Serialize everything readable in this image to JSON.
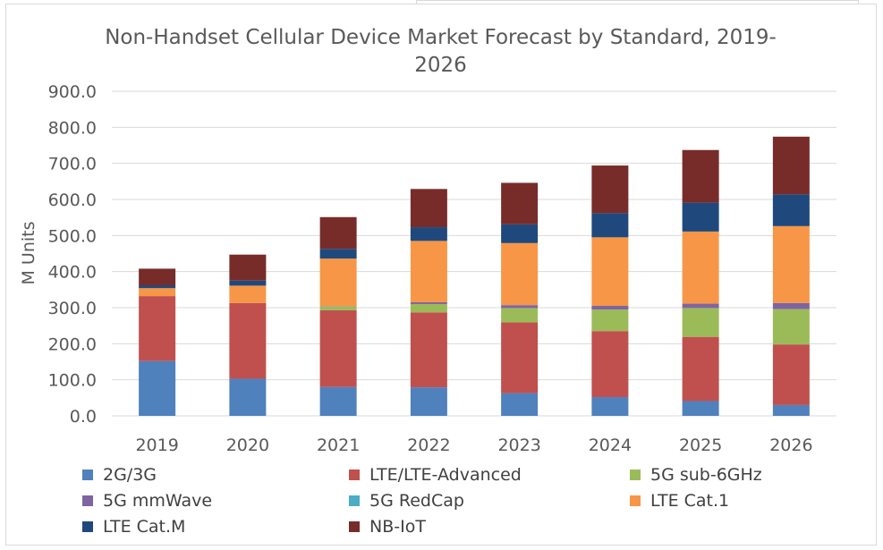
{
  "chart_data": {
    "type": "bar",
    "stacked": true,
    "title": "Non-Handset Cellular Device Market Forecast by Standard, 2019-2026",
    "title_lines": [
      "Non-Handset Cellular Device Market Forecast by Standard, 2019-",
      "2026"
    ],
    "xlabel": "",
    "ylabel": "M Units",
    "ylim": [
      0,
      900
    ],
    "yticks": [
      "0.0",
      "100.0",
      "200.0",
      "300.0",
      "400.0",
      "500.0",
      "600.0",
      "700.0",
      "800.0",
      "900.0"
    ],
    "grid": true,
    "legend_position": "bottom",
    "categories": [
      "2019",
      "2020",
      "2021",
      "2022",
      "2023",
      "2024",
      "2025",
      "2026"
    ],
    "series": [
      {
        "name": "2G/3G",
        "color": "#4f81bd",
        "values": [
          152,
          103,
          80,
          79,
          63,
          52,
          41,
          30
        ]
      },
      {
        "name": "LTE/LTE-Advanced",
        "color": "#c0504d",
        "values": [
          180,
          210,
          213,
          208,
          196,
          183,
          178,
          168
        ]
      },
      {
        "name": "5G sub-6GHz",
        "color": "#9bbb59",
        "values": [
          0,
          0,
          10,
          23,
          40,
          60,
          80,
          98
        ]
      },
      {
        "name": "5G mmWave",
        "color": "#8064a2",
        "values": [
          0,
          0,
          1,
          5,
          8,
          10,
          12,
          17
        ]
      },
      {
        "name": "5G RedCap",
        "color": "#4bacc6",
        "values": [
          0,
          0,
          0,
          0,
          0,
          0,
          0,
          0
        ]
      },
      {
        "name": "LTE Cat.1",
        "color": "#f79646",
        "values": [
          22,
          48,
          132,
          170,
          172,
          190,
          200,
          213
        ]
      },
      {
        "name": "LTE Cat.M",
        "color": "#1f497d",
        "values": [
          8,
          14,
          27,
          38,
          52,
          67,
          80,
          88
        ]
      },
      {
        "name": "NB-IoT",
        "color": "#772c2a",
        "values": [
          46,
          72,
          88,
          106,
          115,
          132,
          146,
          160
        ]
      }
    ]
  }
}
